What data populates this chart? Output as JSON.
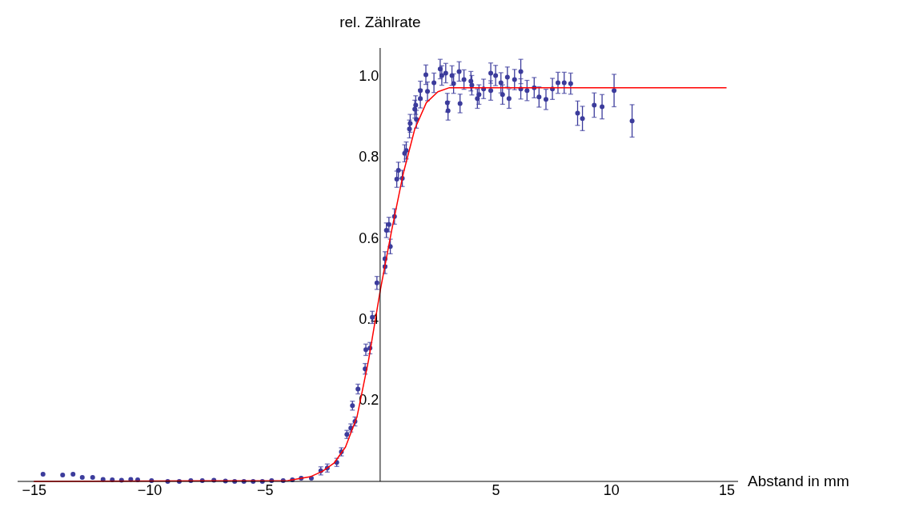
{
  "chart_data": {
    "type": "scatter",
    "xlabel": "Abstand in mm",
    "ylabel": "rel. Zählrate",
    "xlim": [
      -15.7,
      15.5
    ],
    "ylim": [
      0,
      1.07
    ],
    "xticks": [
      -15,
      -10,
      -5,
      5,
      10,
      15
    ],
    "yticks": [
      0.2,
      0.4,
      0.6,
      0.8,
      {
        "value": 1,
        "label": "1.0"
      }
    ],
    "grid": false,
    "series": [
      {
        "marker": "circle",
        "color": "#3c3c9c",
        "x": [
          -14.6,
          -13.75,
          -13.3,
          -12.9,
          -12.45,
          -12.0,
          -11.6,
          -11.2,
          -10.8,
          -10.5,
          -9.9,
          -9.2,
          -8.7,
          -8.2,
          -7.7,
          -7.2,
          -6.7,
          -6.3,
          -5.9,
          -5.5,
          -5.1,
          -4.7,
          -4.2,
          -3.8,
          -3.42,
          -2.98,
          -2.57,
          -2.29,
          -1.88,
          -1.68,
          -1.44,
          -1.27,
          -1.2,
          -1.09,
          -0.96,
          -0.65,
          -0.62,
          -0.44,
          -0.34,
          -0.14,
          0.21,
          0.21,
          0.27,
          0.38,
          0.44,
          0.62,
          0.72,
          0.79,
          0.96,
          1.06,
          1.13,
          1.27,
          1.3,
          1.5,
          1.54,
          1.57,
          1.74,
          1.74,
          1.98,
          2.05,
          2.33,
          2.6,
          2.67,
          2.84,
          2.91,
          2.94,
          3.11,
          3.18,
          3.42,
          3.46,
          3.63,
          3.93,
          3.97,
          4.21,
          4.28,
          4.48,
          4.79,
          4.79,
          5.0,
          5.23,
          5.3,
          5.51,
          5.58,
          5.82,
          6.09,
          6.09,
          6.36,
          6.67,
          6.88,
          7.18,
          7.46,
          7.7,
          7.97,
          8.25,
          8.55,
          8.76,
          9.27,
          9.61,
          10.13,
          10.91
        ],
        "values": [
          0.018,
          0.016,
          0.018,
          0.01,
          0.01,
          0.005,
          0.004,
          0.003,
          0.005,
          0.004,
          0.002,
          0.0,
          0.0,
          0.002,
          0.002,
          0.003,
          0.001,
          0.0,
          0.0,
          0.0,
          0.0,
          0.002,
          0.002,
          0.004,
          0.008,
          0.008,
          0.026,
          0.033,
          0.047,
          0.073,
          0.116,
          0.132,
          0.187,
          0.148,
          0.228,
          0.278,
          0.325,
          0.329,
          0.405,
          0.49,
          0.53,
          0.55,
          0.62,
          0.634,
          0.58,
          0.654,
          0.746,
          0.768,
          0.748,
          0.81,
          0.817,
          0.87,
          0.884,
          0.919,
          0.929,
          0.894,
          0.965,
          0.945,
          1.004,
          0.963,
          0.984,
          1.018,
          1.002,
          1.008,
          0.935,
          0.915,
          1.002,
          0.982,
          1.012,
          0.933,
          0.992,
          0.988,
          0.978,
          0.945,
          0.955,
          0.969,
          1.008,
          0.965,
          1.002,
          0.984,
          0.955,
          0.998,
          0.945,
          0.992,
          1.012,
          0.969,
          0.965,
          0.972,
          0.949,
          0.943,
          0.969,
          0.984,
          0.984,
          0.982,
          0.909,
          0.896,
          0.929,
          0.925,
          0.965,
          0.89
        ],
        "errors": [
          null,
          null,
          null,
          null,
          null,
          null,
          null,
          null,
          null,
          null,
          null,
          null,
          null,
          null,
          null,
          null,
          null,
          null,
          null,
          null,
          null,
          null,
          null,
          null,
          null,
          null,
          0.01,
          0.01,
          0.01,
          0.01,
          0.01,
          0.01,
          0.011,
          0.011,
          0.012,
          0.013,
          0.014,
          0.014,
          0.015,
          0.016,
          0.017,
          0.017,
          0.018,
          0.018,
          0.018,
          0.019,
          0.02,
          0.02,
          0.02,
          0.021,
          0.021,
          0.022,
          0.022,
          0.022,
          0.023,
          0.022,
          0.023,
          0.023,
          0.024,
          0.023,
          0.024,
          0.024,
          0.024,
          0.024,
          0.023,
          0.023,
          0.024,
          0.024,
          0.024,
          0.023,
          0.024,
          0.024,
          0.024,
          0.024,
          0.024,
          0.024,
          0.025,
          0.024,
          0.025,
          0.025,
          0.024,
          0.025,
          0.024,
          0.025,
          0.03,
          0.025,
          0.025,
          0.025,
          0.025,
          0.025,
          0.026,
          0.026,
          0.026,
          0.026,
          0.03,
          0.03,
          0.03,
          0.03,
          0.04,
          0.04
        ]
      },
      {
        "type": "line",
        "color": "#ff0000",
        "x": [
          -15,
          -4,
          -3,
          -2.5,
          -2,
          -1.5,
          -1,
          -0.5,
          0,
          0.5,
          1,
          1.5,
          2,
          2.5,
          3,
          15
        ],
        "values": [
          0,
          0.002,
          0.012,
          0.025,
          0.045,
          0.085,
          0.16,
          0.3,
          0.47,
          0.62,
          0.76,
          0.87,
          0.935,
          0.962,
          0.972,
          0.972
        ]
      }
    ]
  }
}
